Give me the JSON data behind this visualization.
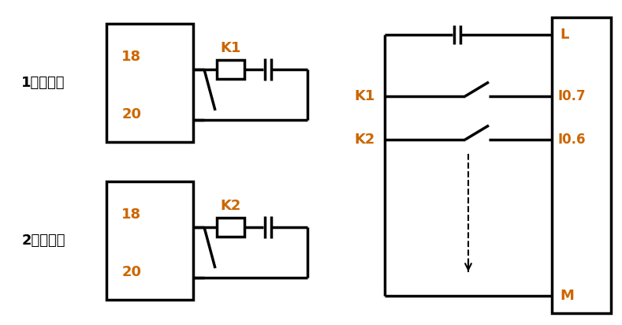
{
  "bg_color": "#ffffff",
  "line_color": "#000000",
  "orange_color": "#cc6600",
  "fig_width": 7.89,
  "fig_height": 4.12,
  "dpi": 100,
  "label_1hao": "1号变频器",
  "label_2hao": "2号变频器",
  "label_k1": "K1",
  "label_k2": "K2",
  "label_18": "18",
  "label_20": "20",
  "label_L": "L",
  "label_M": "M",
  "label_I07": "I0.7",
  "label_I06": "I0.6",
  "label_K1_right": "K1",
  "label_K2_right": "K2"
}
